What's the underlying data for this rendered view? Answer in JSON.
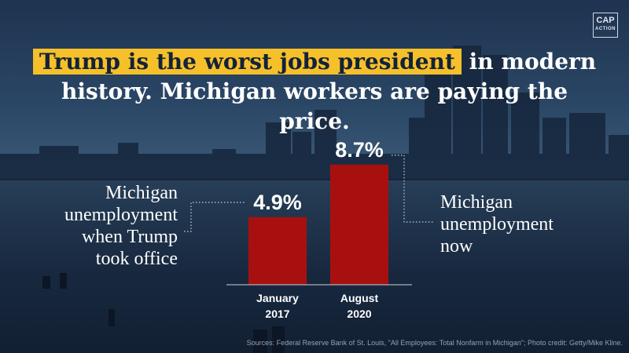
{
  "logo": {
    "line1": "CAP",
    "line2": "ACTION"
  },
  "headline": {
    "highlight": "Trump is the worst jobs president",
    "rest_line1": " in modern",
    "line2": "history. Michigan workers are paying the price."
  },
  "annotations": {
    "left": [
      "Michigan",
      "unemployment",
      "when Trump",
      "took office"
    ],
    "right": [
      "Michigan",
      "unemployment",
      "now"
    ]
  },
  "chart_data": {
    "type": "bar",
    "categories": [
      [
        "January",
        "2017"
      ],
      [
        "August",
        "2020"
      ]
    ],
    "values": [
      4.9,
      8.7
    ],
    "value_labels": [
      "4.9%",
      "8.7%"
    ],
    "ylim": [
      0,
      10
    ],
    "grid": false,
    "bar_color": "#a81010"
  },
  "source": "Sources: Federal Reserve Bank of St. Louis, \"All Employees: Total Nonfarm in Michigan\"; Photo credit: Getty/Mike Kline."
}
